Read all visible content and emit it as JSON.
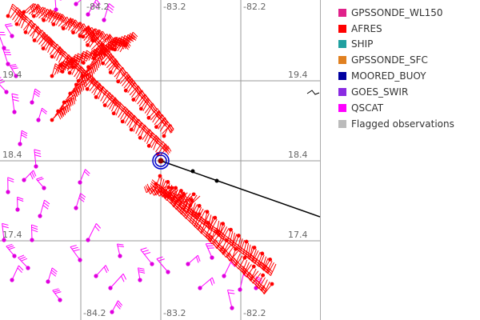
{
  "map": {
    "lon_labels_top": [
      "-84.2",
      "-83.2",
      "-82.2"
    ],
    "lon_labels_bottom": [
      "-84.2",
      "-83.2",
      "-82.2"
    ],
    "lat_labels_left": [
      "19.4",
      "18.4",
      "17.4"
    ],
    "lat_labels_right": [
      "19.4",
      "18.4",
      "17.4"
    ],
    "colors": {
      "afres": "#ff0000",
      "qscat": "#ff00ff",
      "qscat_dot": "#e000e0",
      "grid": "#999999",
      "track": "#000000",
      "storm_center": "#0000cc"
    }
  },
  "legend": {
    "items": [
      {
        "label": "GPSSONDE_WL150",
        "color": "#e0218a"
      },
      {
        "label": "AFRES",
        "color": "#ff0000"
      },
      {
        "label": "SHIP",
        "color": "#20a0a0"
      },
      {
        "label": "GPSSONDE_SFC",
        "color": "#e08020"
      },
      {
        "label": "MOORED_BUOY",
        "color": "#0000a0"
      },
      {
        "label": "GOES_SWIR",
        "color": "#8a2be2"
      },
      {
        "label": "QSCAT",
        "color": "#ff00ff"
      },
      {
        "label": "Flagged observations",
        "color": "#bbbbbb"
      }
    ]
  }
}
